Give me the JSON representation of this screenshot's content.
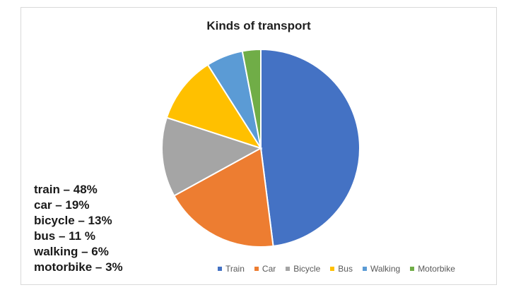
{
  "chart_data": {
    "type": "pie",
    "title": "Kinds of transport",
    "categories": [
      "Train",
      "Car",
      "Bicycle",
      "Bus",
      "Walking",
      "Motorbike"
    ],
    "values": [
      48,
      19,
      13,
      11,
      6,
      3
    ],
    "colors": [
      "#4472c4",
      "#ed7d31",
      "#a5a5a5",
      "#ffc000",
      "#5b9bd5",
      "#70ad47"
    ],
    "legend_position": "bottom",
    "start_angle": "top, clockwise"
  },
  "notes": [
    "train – 48%",
    "car – 19%",
    "bicycle – 13%",
    "bus – 11 %",
    "walking – 6%",
    "motorbike – 3%"
  ]
}
